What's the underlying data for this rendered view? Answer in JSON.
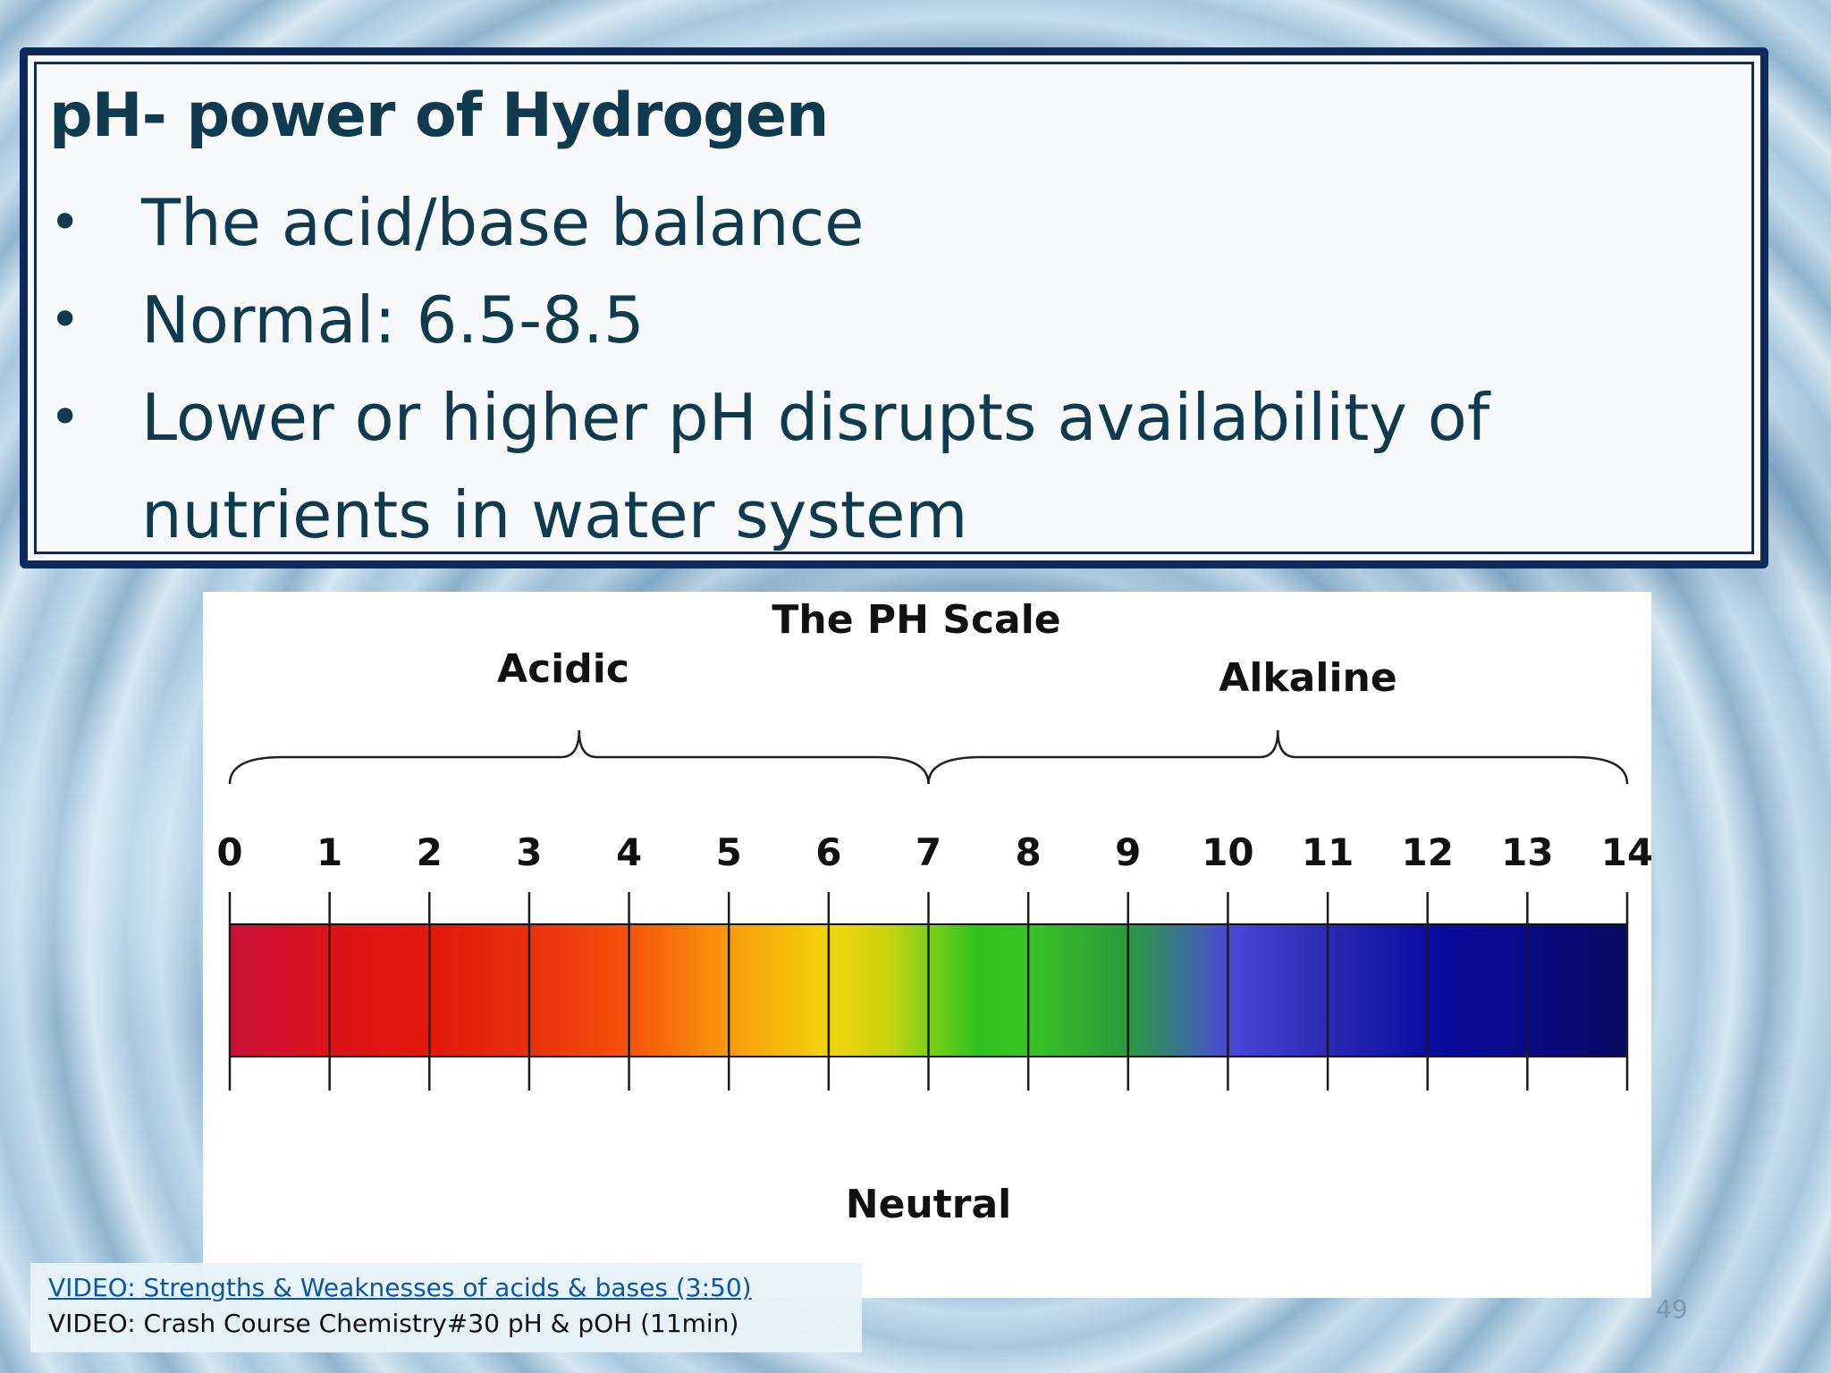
{
  "slide": {
    "heading": "pH- power of Hydrogen",
    "bullets": [
      {
        "bullet": "•",
        "text": "The acid/base balance"
      },
      {
        "bullet": "•",
        "text": "Normal: 6.5-8.5"
      },
      {
        "bullet": "•",
        "text": "Lower or higher pH disrupts availability of nutrients in water system"
      }
    ],
    "page_number": "49"
  },
  "chart_data": {
    "type": "scale",
    "title": "The PH Scale",
    "tick_labels": [
      "0",
      "1",
      "2",
      "3",
      "4",
      "5",
      "6",
      "7",
      "8",
      "9",
      "10",
      "11",
      "12",
      "13",
      "14"
    ],
    "range": [
      0,
      14
    ],
    "regions": [
      {
        "label": "Acidic",
        "from": 0,
        "to": 7
      },
      {
        "label": "Alkaline",
        "from": 7,
        "to": 14
      }
    ],
    "neutral_label": "Neutral",
    "neutral_value": 7,
    "color_stops": [
      {
        "value": 0,
        "color": "#c8123c"
      },
      {
        "value": 1,
        "color": "#dc1318"
      },
      {
        "value": 2,
        "color": "#e2180c"
      },
      {
        "value": 3,
        "color": "#e8300c"
      },
      {
        "value": 4,
        "color": "#f6520a"
      },
      {
        "value": 5,
        "color": "#f89a0c"
      },
      {
        "value": 6,
        "color": "#f2d40a"
      },
      {
        "value": 6.6,
        "color": "#c9d410"
      },
      {
        "value": 7,
        "color": "#7ed01a"
      },
      {
        "value": 7.5,
        "color": "#2fc21e"
      },
      {
        "value": 8,
        "color": "#38c424"
      },
      {
        "value": 9,
        "color": "#2a9a3c"
      },
      {
        "value": 9.6,
        "color": "#3b6e9a"
      },
      {
        "value": 10,
        "color": "#4a48d8"
      },
      {
        "value": 11,
        "color": "#2a2ab4"
      },
      {
        "value": 12,
        "color": "#0c0ca0"
      },
      {
        "value": 13,
        "color": "#0a0a86"
      },
      {
        "value": 14,
        "color": "#0a0a60"
      }
    ]
  },
  "links": {
    "video1": "VIDEO: Strengths & Weaknesses of acids & bases (3:50)",
    "video2": "VIDEO: Crash Course Chemistry#30 pH & pOH (11min)"
  },
  "colors": {
    "frame": "#0e2a5c",
    "heading_text": "#103a4e",
    "link": "#0b56a8"
  }
}
